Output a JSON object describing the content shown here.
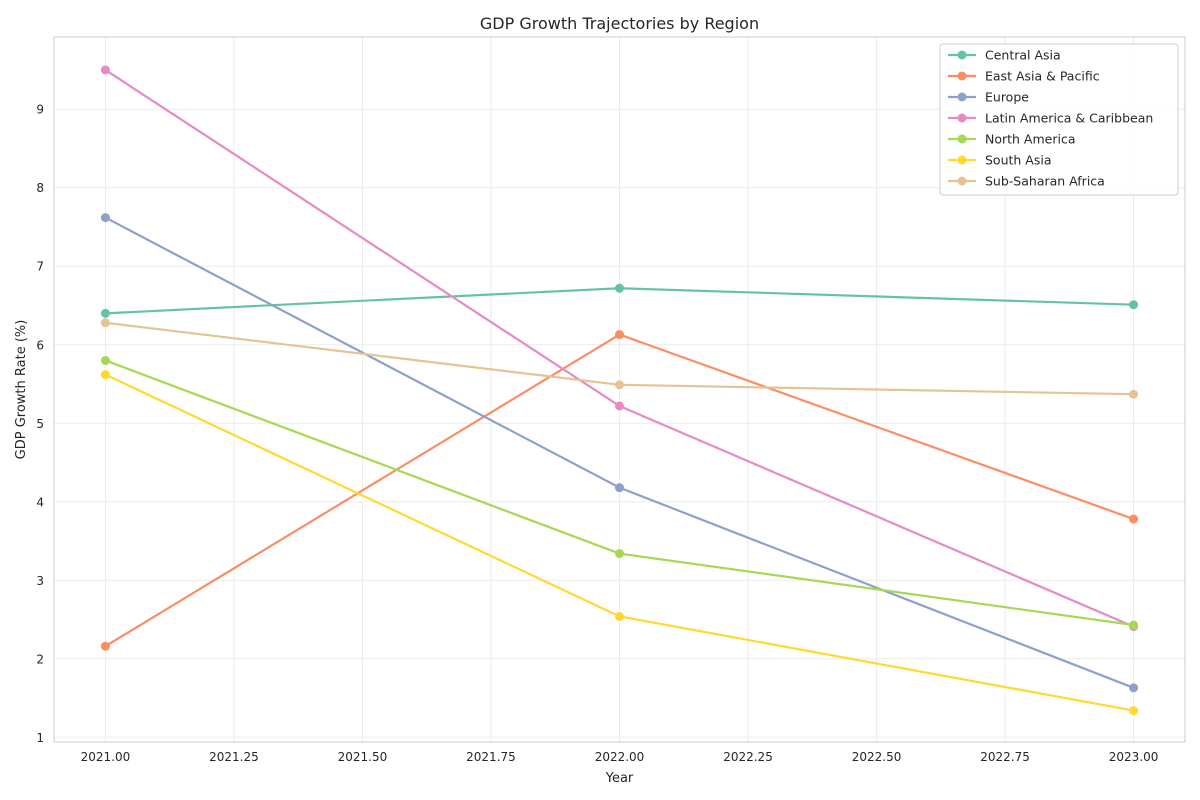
{
  "chart_data": {
    "type": "line",
    "title": "GDP Growth Trajectories by Region",
    "xlabel": "Year",
    "ylabel": "GDP Growth Rate (%)",
    "xlim": [
      2020.9,
      2023.1
    ],
    "ylim": [
      0.94,
      9.92
    ],
    "x_ticks": [
      "2021.00",
      "2021.25",
      "2021.50",
      "2021.75",
      "2022.00",
      "2022.25",
      "2022.50",
      "2022.75",
      "2023.00"
    ],
    "y_ticks": [
      "1",
      "2",
      "3",
      "4",
      "5",
      "6",
      "7",
      "8",
      "9"
    ],
    "grid": true,
    "legend_position": "top-right",
    "x": [
      2021,
      2022,
      2023
    ],
    "series": [
      {
        "name": "Central Asia",
        "color": "#66c2a5",
        "values": [
          6.4,
          6.72,
          6.51
        ]
      },
      {
        "name": "East Asia & Pacific",
        "color": "#fc8d62",
        "values": [
          2.16,
          6.13,
          3.78
        ]
      },
      {
        "name": "Europe",
        "color": "#8da0cb",
        "values": [
          7.62,
          4.18,
          1.63
        ]
      },
      {
        "name": "Latin America & Caribbean",
        "color": "#e78ac3",
        "values": [
          9.5,
          5.22,
          2.41
        ]
      },
      {
        "name": "North America",
        "color": "#a6d854",
        "values": [
          5.8,
          3.34,
          2.43
        ]
      },
      {
        "name": "South Asia",
        "color": "#ffd92f",
        "values": [
          5.62,
          2.54,
          1.34
        ]
      },
      {
        "name": "Sub-Saharan Africa",
        "color": "#e5c494",
        "values": [
          6.28,
          5.49,
          5.37
        ]
      }
    ]
  }
}
